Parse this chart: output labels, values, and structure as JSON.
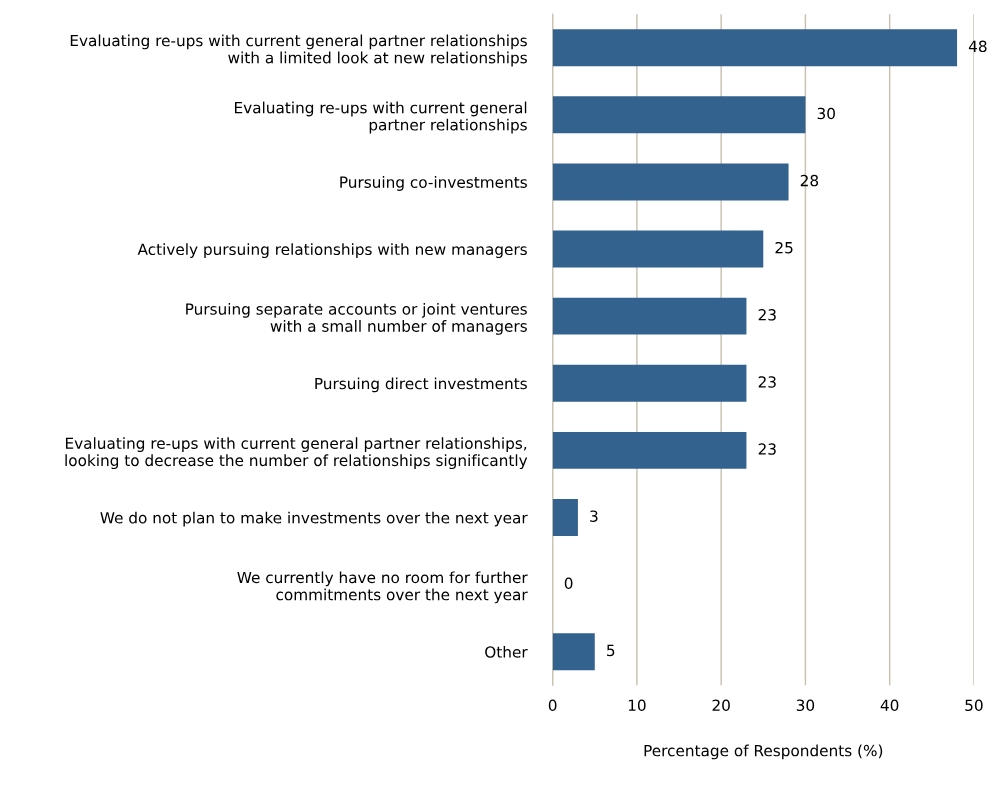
{
  "chart_data": {
    "type": "bar",
    "orientation": "horizontal",
    "xlabel": "Percentage of Respondents (%)",
    "categories": [
      "Evaluating re-ups with current general partner relationships\nwith a limited look at new relationships",
      "Evaluating re-ups with current general\npartner relationships",
      "Pursuing co-investments",
      "Actively pursuing relationships with new managers",
      "Pursuing separate accounts or joint ventures\nwith a small number of managers",
      "Pursuing direct investments",
      "Evaluating re-ups with current general partner relationships,\nlooking to decrease the number of relationships significantly",
      "We do not plan to make investments over the next year",
      "We currently have no room for further\ncommitments over the next year",
      "Other"
    ],
    "values": [
      48,
      30,
      28,
      25,
      23,
      23,
      23,
      3,
      0,
      5
    ],
    "color": "#33628f",
    "xlim": [
      0,
      50
    ],
    "xticks": [
      0,
      10,
      20,
      30,
      40,
      50
    ],
    "grid": "x",
    "data_labels": true,
    "legend": false
  }
}
